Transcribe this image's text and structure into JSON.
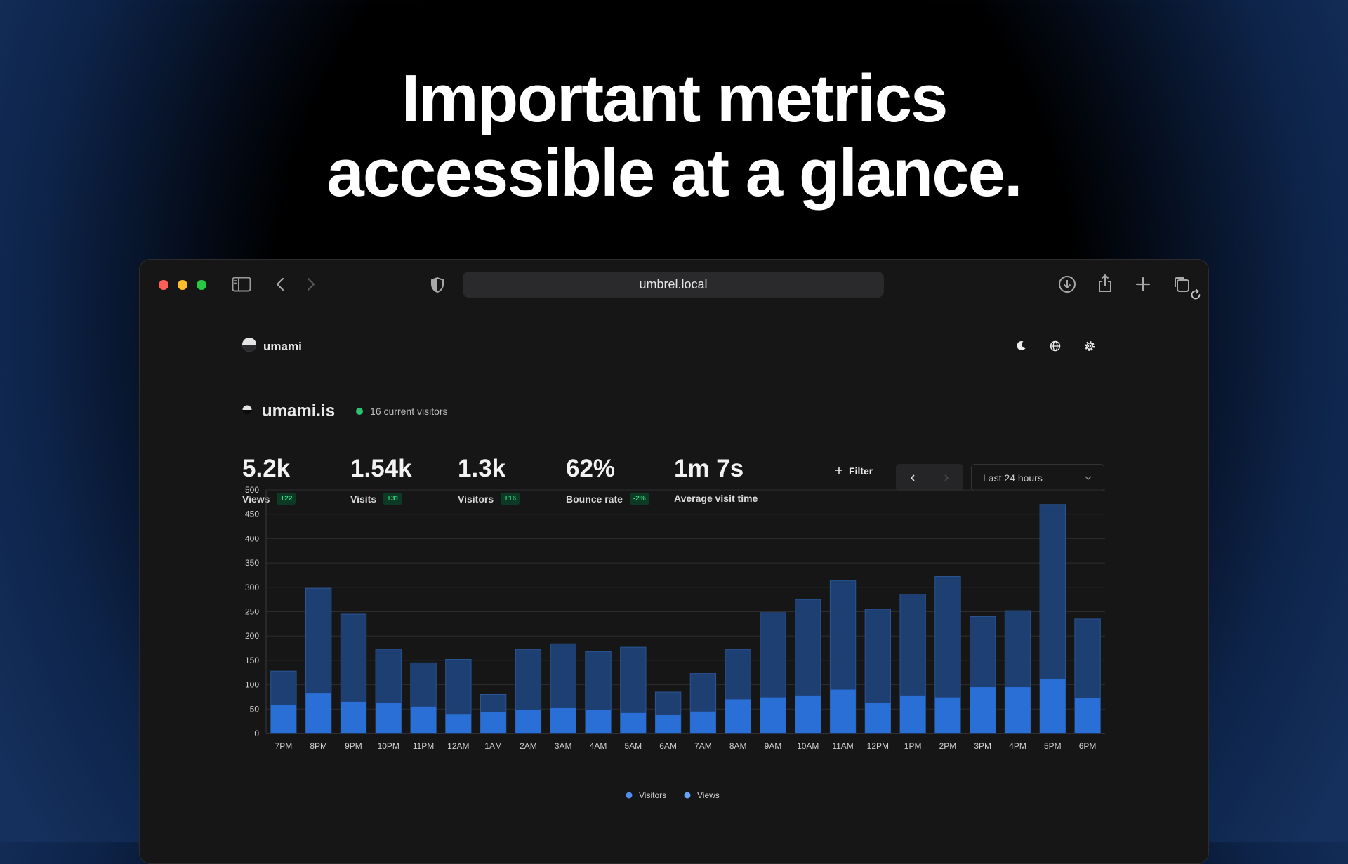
{
  "headline": {
    "line1": "Important metrics",
    "line2": "accessible at a glance."
  },
  "browser": {
    "url": "umbrel.local",
    "traffic_lights": [
      "#ff5f57",
      "#febc2e",
      "#28c840"
    ]
  },
  "app": {
    "brand": "umami",
    "header_icons": [
      "moon-icon",
      "globe-icon",
      "gear-icon"
    ],
    "site_name": "umami.is",
    "current_visitors": "16 current visitors",
    "metrics": [
      {
        "value": "5.2k",
        "label": "Views",
        "change": "+22"
      },
      {
        "value": "1.54k",
        "label": "Visits",
        "change": "+31"
      },
      {
        "value": "1.3k",
        "label": "Visitors",
        "change": "+16"
      },
      {
        "value": "62%",
        "label": "Bounce rate",
        "change": "-2%"
      },
      {
        "value": "1m 7s",
        "label": "Average visit time",
        "change": ""
      }
    ],
    "filter_label": "Filter",
    "date_range": "Last 24 hours"
  },
  "chart_data": {
    "type": "bar",
    "stacked": false,
    "categories": [
      "7PM",
      "8PM",
      "9PM",
      "10PM",
      "11PM",
      "12AM",
      "1AM",
      "2AM",
      "3AM",
      "4AM",
      "5AM",
      "6AM",
      "7AM",
      "8AM",
      "9AM",
      "10AM",
      "11AM",
      "12PM",
      "1PM",
      "2PM",
      "3PM",
      "4PM",
      "5PM",
      "6PM"
    ],
    "series": [
      {
        "name": "Visitors",
        "color": "#2a6fd6",
        "values": [
          58,
          82,
          65,
          62,
          55,
          40,
          44,
          48,
          52,
          48,
          42,
          38,
          45,
          70,
          74,
          78,
          90,
          62,
          78,
          74,
          95,
          95,
          112,
          72
        ]
      },
      {
        "name": "Views",
        "color": "#1d3f72",
        "values": [
          128,
          298,
          245,
          173,
          145,
          152,
          80,
          172,
          184,
          168,
          177,
          85,
          123,
          172,
          248,
          275,
          314,
          255,
          286,
          322,
          240,
          252,
          470,
          235
        ]
      }
    ],
    "ylim": [
      0,
      500
    ],
    "yticks": [
      0,
      50,
      100,
      150,
      200,
      250,
      300,
      350,
      400,
      450,
      500
    ],
    "grid": true,
    "legend": "bottom-center"
  }
}
